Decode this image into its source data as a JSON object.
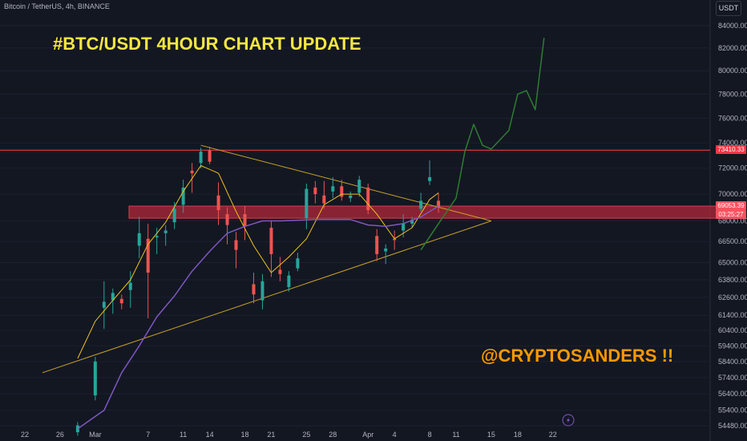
{
  "header": {
    "symbol_label": "Bitcoin / TetherUS, 4h, BINANCE",
    "currency_button": "USDT"
  },
  "annotations": {
    "title": "#BTC/USDT 4HOUR CHART UPDATE",
    "handle": "@CRYPTOSANDERS !!"
  },
  "icons": [
    "lightning-icon"
  ],
  "colors": {
    "background": "#131722",
    "bull": "#26a69a",
    "bear": "#ef5350",
    "resistance_line": "#f23645",
    "support_zone": "#b2283a",
    "trendline": "#c9a227",
    "ma_fast": "#f0c419",
    "ma_slow": "#7e57c2",
    "projection": "#2e7d32",
    "title": "#f5e642",
    "handle": "#ff9800"
  },
  "chart_data": {
    "type": "candlestick",
    "x_tick_labels": [
      "22",
      "26",
      "Mar",
      "7",
      "11",
      "14",
      "18",
      "21",
      "25",
      "28",
      "Apr",
      "4",
      "8",
      "11",
      "15",
      "18",
      "22"
    ],
    "y_tick_labels": [
      "84000.00",
      "82000.00",
      "80000.00",
      "78000.00",
      "76000.00",
      "74000.00",
      "72000.00",
      "70000.00",
      "68000.00",
      "66500.00",
      "65000.00",
      "63800.00",
      "62600.00",
      "61400.00",
      "60400.00",
      "59400.00",
      "58400.00",
      "57400.00",
      "56400.00",
      "55400.00",
      "54480.00"
    ],
    "log_scale": true,
    "ylim": [
      54200,
      85000
    ],
    "horizontal_lines": [
      {
        "name": "resistance",
        "price": 73410.33,
        "label": "73410.33"
      }
    ],
    "support_zone": {
      "low": 68200,
      "high": 69100
    },
    "current_price": {
      "value": "69053.39",
      "countdown": "03:25:27"
    },
    "trendlines": [
      {
        "name": "descending-resistance",
        "from": {
          "x": "Mar 13",
          "price": 73800
        },
        "to": {
          "x": "Apr 15",
          "price": 68000
        }
      },
      {
        "name": "ascending-support",
        "from": {
          "x": "Feb 24",
          "price": 57700
        },
        "to": {
          "x": "Apr 15",
          "price": 68000
        }
      }
    ],
    "series": [
      {
        "name": "fast moving average (approximate)",
        "type": "line",
        "points": [
          [
            "Feb 28",
            58600
          ],
          [
            "Mar 1",
            61000
          ],
          [
            "Mar 3",
            62400
          ],
          [
            "Mar 5",
            63800
          ],
          [
            "Mar 7",
            66300
          ],
          [
            "Mar 9",
            67900
          ],
          [
            "Mar 11",
            70200
          ],
          [
            "Mar 13",
            72200
          ],
          [
            "Mar 15",
            71600
          ],
          [
            "Mar 17",
            68700
          ],
          [
            "Mar 19",
            66200
          ],
          [
            "Mar 21",
            64300
          ],
          [
            "Mar 23",
            65400
          ],
          [
            "Mar 25",
            66700
          ],
          [
            "Mar 27",
            69200
          ],
          [
            "Mar 29",
            70000
          ],
          [
            "Mar 31",
            70000
          ],
          [
            "Apr 2",
            68500
          ],
          [
            "Apr 4",
            66700
          ],
          [
            "Apr 6",
            67500
          ],
          [
            "Apr 8",
            69600
          ],
          [
            "Apr 9",
            70100
          ]
        ]
      },
      {
        "name": "slow moving average (approximate)",
        "type": "line",
        "points": [
          [
            "Feb 28",
            54300
          ],
          [
            "Mar 2",
            55400
          ],
          [
            "Mar 4",
            57700
          ],
          [
            "Mar 6",
            59400
          ],
          [
            "Mar 8",
            61300
          ],
          [
            "Mar 10",
            62700
          ],
          [
            "Mar 12",
            64400
          ],
          [
            "Mar 14",
            65800
          ],
          [
            "Mar 16",
            67100
          ],
          [
            "Mar 18",
            67600
          ],
          [
            "Mar 20",
            68000
          ],
          [
            "Mar 22",
            68000
          ],
          [
            "Mar 26",
            68100
          ],
          [
            "Mar 30",
            68100
          ],
          [
            "Apr 1",
            67700
          ],
          [
            "Apr 3",
            67600
          ],
          [
            "Apr 5",
            67800
          ],
          [
            "Apr 7",
            68300
          ],
          [
            "Apr 9",
            69100
          ]
        ]
      },
      {
        "name": "projected path (hand drawn)",
        "type": "line",
        "points": [
          [
            "Apr 7",
            65900
          ],
          [
            "Apr 9",
            67800
          ],
          [
            "Apr 11",
            69700
          ],
          [
            "Apr 12",
            73300
          ],
          [
            "Apr 13",
            75500
          ],
          [
            "Apr 14",
            73800
          ],
          [
            "Apr 15",
            73500
          ],
          [
            "Apr 17",
            75000
          ],
          [
            "Apr 18",
            78000
          ],
          [
            "Apr 19",
            78300
          ],
          [
            "Apr 20",
            76700
          ],
          [
            "Apr 21",
            82900
          ]
        ]
      },
      {
        "name": "price (approximate 4h candles)",
        "type": "candlestick",
        "points": [
          [
            "Feb 28",
            54100,
            54700,
            53900,
            54500
          ],
          [
            "Mar 1",
            56300,
            58700,
            56000,
            58400
          ],
          [
            "Mar 2",
            61900,
            63700,
            60500,
            62300
          ],
          [
            "Mar 3",
            62400,
            63200,
            61500,
            62900
          ],
          [
            "Mar 4",
            62500,
            62800,
            61800,
            62200
          ],
          [
            "Mar 5",
            63100,
            64400,
            61900,
            63600
          ],
          [
            "Mar 6",
            66200,
            68300,
            65300,
            67100
          ],
          [
            "Mar 7",
            66700,
            67800,
            61200,
            64300
          ],
          [
            "Mar 8",
            66800,
            67500,
            65600,
            66900
          ],
          [
            "Mar 9",
            67100,
            67700,
            66200,
            67300
          ],
          [
            "Mar 10",
            67900,
            69400,
            67400,
            68900
          ],
          [
            "Mar 11",
            69200,
            71100,
            68600,
            70500
          ],
          [
            "Mar 12",
            71800,
            72400,
            70100,
            71600
          ],
          [
            "Mar 13",
            72400,
            73600,
            72000,
            73300
          ],
          [
            "Mar 14",
            73400,
            73700,
            72300,
            72500
          ],
          [
            "Mar 15",
            69900,
            70900,
            67700,
            68800
          ],
          [
            "Mar 16",
            68500,
            69000,
            66300,
            67700
          ],
          [
            "Mar 17",
            66600,
            67200,
            64600,
            65900
          ],
          [
            "Mar 18",
            68500,
            69100,
            66600,
            67600
          ],
          [
            "Mar 19",
            63500,
            64300,
            62200,
            62800
          ],
          [
            "Mar 20",
            62400,
            64200,
            61800,
            63700
          ],
          [
            "Mar 21",
            67500,
            68000,
            64000,
            65600
          ],
          [
            "Mar 22",
            64500,
            65400,
            63700,
            64200
          ],
          [
            "Mar 23",
            63300,
            64400,
            63000,
            64100
          ],
          [
            "Mar 24",
            64600,
            65700,
            64400,
            65300
          ],
          [
            "Mar 25",
            68200,
            70800,
            67400,
            70400
          ],
          [
            "Mar 26",
            70500,
            71000,
            69300,
            70000
          ],
          [
            "Mar 27",
            69900,
            71000,
            68900,
            69300
          ],
          [
            "Mar 28",
            70200,
            71300,
            69700,
            70600
          ],
          [
            "Mar 29",
            70600,
            71100,
            69500,
            69800
          ],
          [
            "Mar 30",
            69700,
            70200,
            69400,
            69900
          ],
          [
            "Mar 31",
            70100,
            71400,
            69800,
            71100
          ],
          [
            "Apr 1",
            70500,
            70800,
            68500,
            68800
          ],
          [
            "Apr 2",
            66900,
            67400,
            65100,
            65600
          ],
          [
            "Apr 3",
            65800,
            66300,
            64900,
            66000
          ],
          [
            "Apr 4",
            66700,
            67300,
            65900,
            66600
          ],
          [
            "Apr 5",
            67300,
            68500,
            66800,
            67800
          ],
          [
            "Apr 6",
            67800,
            68300,
            67500,
            68100
          ],
          [
            "Apr 7",
            68900,
            70100,
            68700,
            69500
          ],
          [
            "Apr 8",
            71000,
            72600,
            70700,
            71300
          ],
          [
            "Apr 9",
            69500,
            70100,
            68600,
            69050
          ]
        ]
      }
    ]
  }
}
